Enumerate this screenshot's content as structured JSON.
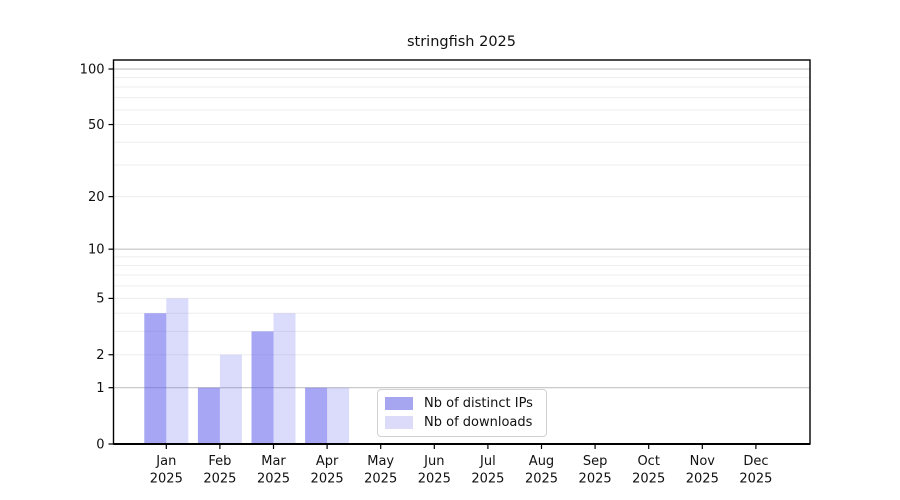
{
  "chart_data": {
    "type": "bar",
    "title": "stringfish 2025",
    "categories": [
      "Jan",
      "Feb",
      "Mar",
      "Apr",
      "May",
      "Jun",
      "Jul",
      "Aug",
      "Sep",
      "Oct",
      "Nov",
      "Dec"
    ],
    "category_year": "2025",
    "series": [
      {
        "name": "Nb of distinct IPs",
        "values": [
          4,
          1,
          3,
          1,
          0,
          0,
          0,
          0,
          0,
          0,
          0,
          0
        ],
        "base_color": "#5c5cec",
        "opacity": 0.55,
        "rendered_color": "#a5a5f0"
      },
      {
        "name": "Nb of downloads",
        "values": [
          5,
          2,
          4,
          1,
          0,
          0,
          0,
          0,
          0,
          0,
          0,
          0
        ],
        "base_color": "#5c5cec",
        "opacity": 0.22,
        "rendered_color": "#dcdcfa"
      }
    ],
    "xlabel": "",
    "ylabel": "",
    "yscale": "log1p",
    "ylim": [
      0,
      112
    ],
    "yticks": [
      0,
      1,
      2,
      5,
      10,
      20,
      50,
      100
    ],
    "y_major_gridlines": [
      1,
      10,
      100
    ],
    "y_minor_gridlines": [
      2,
      3,
      4,
      5,
      6,
      7,
      8,
      9,
      20,
      30,
      40,
      50,
      60,
      70,
      80,
      90
    ],
    "grid": "horizontal",
    "legend_position": "lower center",
    "colors": {
      "major_gridline": "#c3c3c3",
      "minor_gridline": "#ededed",
      "axis": "#000000",
      "text": "#111111",
      "background": "#ffffff"
    }
  }
}
